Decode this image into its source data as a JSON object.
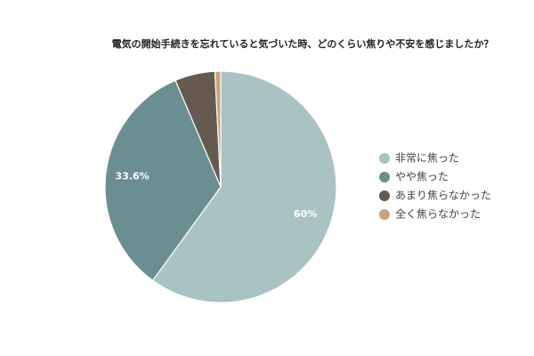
{
  "chart_data": {
    "type": "pie",
    "title": "電気の開始手続きを忘れていると気づいた時、どのくらい焦りや不安を感じましたか？",
    "categories": [
      "非常に焦った",
      "やや焦った",
      "あまり焦らなかった",
      "全く焦らなかった"
    ],
    "values": [
      60,
      33.6,
      5.6,
      0.8
    ],
    "value_labels": [
      "60%",
      "33.6%",
      null,
      null
    ],
    "colors": [
      "#a9c2c2",
      "#6b8e91",
      "#665950",
      "#c9a27e"
    ],
    "legend": "right"
  }
}
